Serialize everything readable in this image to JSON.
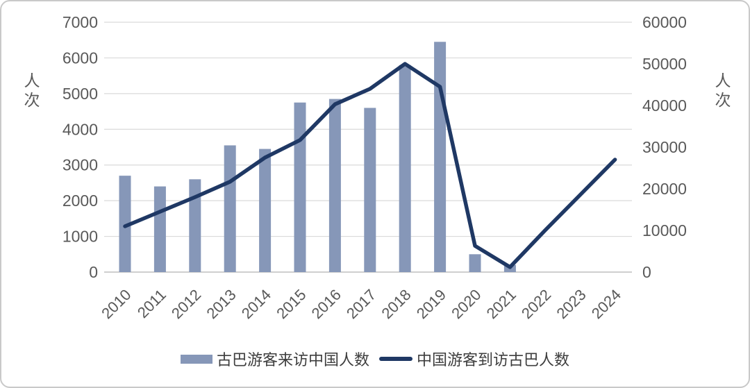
{
  "figure": {
    "background": "#ffffff",
    "border_color": "#c9c9c9"
  },
  "chart_data": {
    "type": "bar",
    "subtype": "combo bar+line, dual y-axis",
    "categories": [
      "2010",
      "2011",
      "2012",
      "2013",
      "2014",
      "2015",
      "2016",
      "2017",
      "2018",
      "2019",
      "2020",
      "2021",
      "2022",
      "2023",
      "2024"
    ],
    "series": [
      {
        "name": "古巴游客来访中国人数",
        "type": "bar",
        "axis": "left",
        "color": "#8697B8",
        "values": [
          2700,
          2400,
          2600,
          3550,
          3450,
          4750,
          4850,
          4600,
          5800,
          6450,
          500,
          200,
          null,
          null,
          null
        ]
      },
      {
        "name": "中国游客到访古巴人数",
        "type": "line",
        "axis": "right",
        "color": "#1F3864",
        "values": [
          11000,
          14500,
          18000,
          21700,
          27500,
          31700,
          40300,
          44000,
          50000,
          44500,
          6300,
          1200,
          10000,
          18500,
          27000
        ]
      }
    ],
    "left_axis": {
      "title": "人次",
      "min": 0,
      "max": 7000,
      "tick_step": 1000,
      "ticks": [
        7000,
        6000,
        5000,
        4000,
        3000,
        2000,
        1000,
        0
      ]
    },
    "right_axis": {
      "title": "人次",
      "min": 0,
      "max": 60000,
      "tick_step": 10000,
      "ticks": [
        60000,
        50000,
        40000,
        30000,
        20000,
        10000,
        0
      ]
    },
    "grid": true,
    "gridline_color": "#DADADA",
    "baseline_color": "#BFBFBF",
    "tick_label_color": "#595959",
    "legend_position": "bottom"
  },
  "legend": {
    "bar_label": "古巴游客来访中国人数",
    "line_label": "中国游客到访古巴人数"
  },
  "axes": {
    "left_title": "人次",
    "right_title": "人次"
  }
}
